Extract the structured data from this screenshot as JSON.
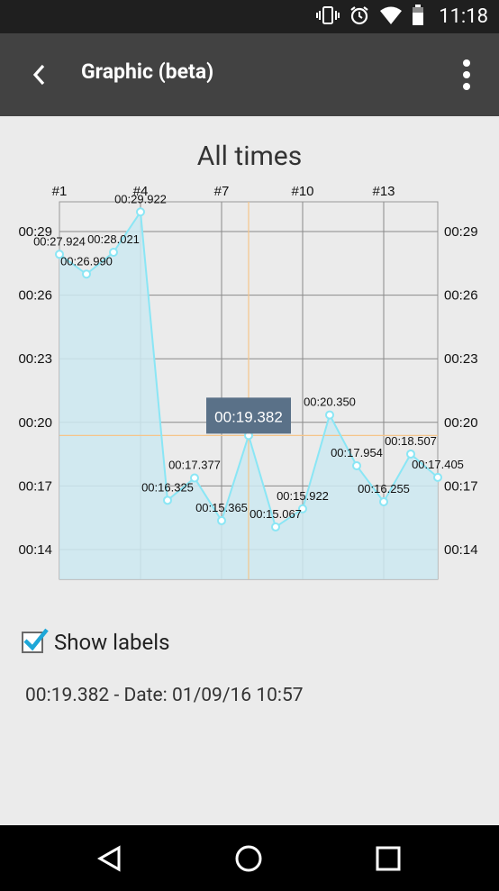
{
  "status_bar": {
    "time": "11:18",
    "icons": [
      "vibrate-icon",
      "alarm-icon",
      "wifi-icon",
      "battery-icon"
    ]
  },
  "app_bar": {
    "title": "Graphic (beta)",
    "back_icon": "back-arrow-icon",
    "menu_icon": "more-vert-icon"
  },
  "chart_data": {
    "type": "line",
    "title": "All times",
    "x_tick_labels": [
      "#1",
      "#4",
      "#7",
      "#10",
      "#13"
    ],
    "y_tick_labels": [
      "00:29",
      "00:26",
      "00:23",
      "00:20",
      "00:17",
      "00:14"
    ],
    "y_tick_values": [
      29,
      26,
      23,
      20,
      17,
      14
    ],
    "x": [
      1,
      2,
      3,
      4,
      5,
      6,
      7,
      8,
      9,
      10,
      11,
      12,
      13,
      14,
      15
    ],
    "values": [
      27.924,
      26.99,
      28.021,
      29.922,
      16.325,
      17.377,
      15.365,
      19.382,
      15.067,
      15.922,
      20.35,
      17.954,
      16.255,
      18.507,
      17.405
    ],
    "point_labels": [
      "00:27.924",
      "00:26.990",
      "00:28.021",
      "00:29.922",
      "00:16.325",
      "00:17.377",
      "00:15.365",
      "",
      "00:15.067",
      "00:15.922",
      "00:20.350",
      "00:17.954",
      "00:16.255",
      "00:18.507",
      "00:17.405"
    ],
    "selected_index": 7,
    "selected_label": "00:19.382",
    "xlim": [
      1,
      15
    ],
    "ylim": [
      12.6,
      30.4
    ],
    "grid": true,
    "colors": {
      "line": "#8ae6f5",
      "fill": "#cde9f1",
      "grid": "#8a8a8a",
      "crosshair": "#f5c58a",
      "tooltip": "#5a7188"
    }
  },
  "controls": {
    "show_labels_label": "Show labels",
    "show_labels_checked": true,
    "accent": "#1ea7d8"
  },
  "detail": {
    "text": "00:19.382 - Date: 01/09/16 10:57"
  },
  "nav_bar": {
    "back": "nav-back-icon",
    "home": "nav-home-icon",
    "recents": "nav-recents-icon"
  }
}
